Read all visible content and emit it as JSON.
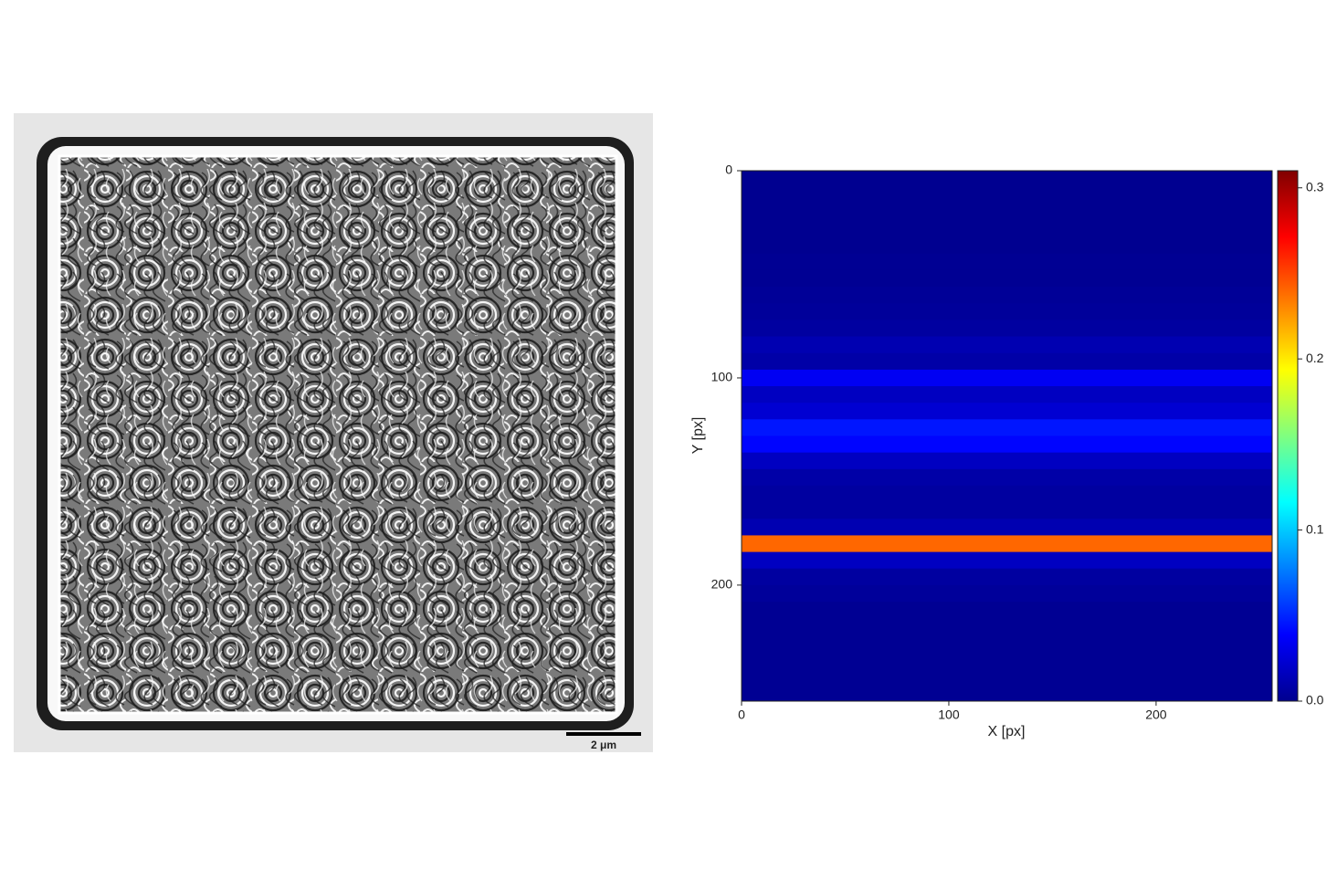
{
  "scale_bar_label": "2 μm",
  "chart_data": {
    "type": "heatmap",
    "xlabel": "X [px]",
    "ylabel": "Y [px]",
    "xlim": [
      0,
      256
    ],
    "ylim": [
      0,
      256
    ],
    "y_inverted": true,
    "xticks": [
      0,
      100,
      200
    ],
    "yticks": [
      0,
      100,
      200
    ],
    "ybins": [
      0,
      8,
      16,
      24,
      32,
      40,
      48,
      56,
      64,
      72,
      80,
      88,
      96,
      104,
      112,
      120,
      128,
      136,
      144,
      152,
      160,
      168,
      176,
      184,
      192,
      200,
      208,
      216,
      224,
      232,
      240,
      248,
      256
    ],
    "values": [
      0.005,
      0.005,
      0.005,
      0.005,
      0.005,
      0.006,
      0.006,
      0.007,
      0.008,
      0.01,
      0.015,
      0.012,
      0.035,
      0.02,
      0.025,
      0.045,
      0.04,
      0.02,
      0.012,
      0.01,
      0.01,
      0.015,
      0.24,
      0.02,
      0.01,
      0.008,
      0.006,
      0.006,
      0.006,
      0.006,
      0.006,
      0.006
    ],
    "colormap": "jet",
    "clim": [
      0,
      0.31
    ],
    "cticks": [
      {
        "value": 0,
        "label": "0.0"
      },
      {
        "value": 0.1,
        "label": "0.1"
      },
      {
        "value": 0.2,
        "label": "0.2"
      },
      {
        "value": 0.3,
        "label": "0.3"
      }
    ]
  }
}
